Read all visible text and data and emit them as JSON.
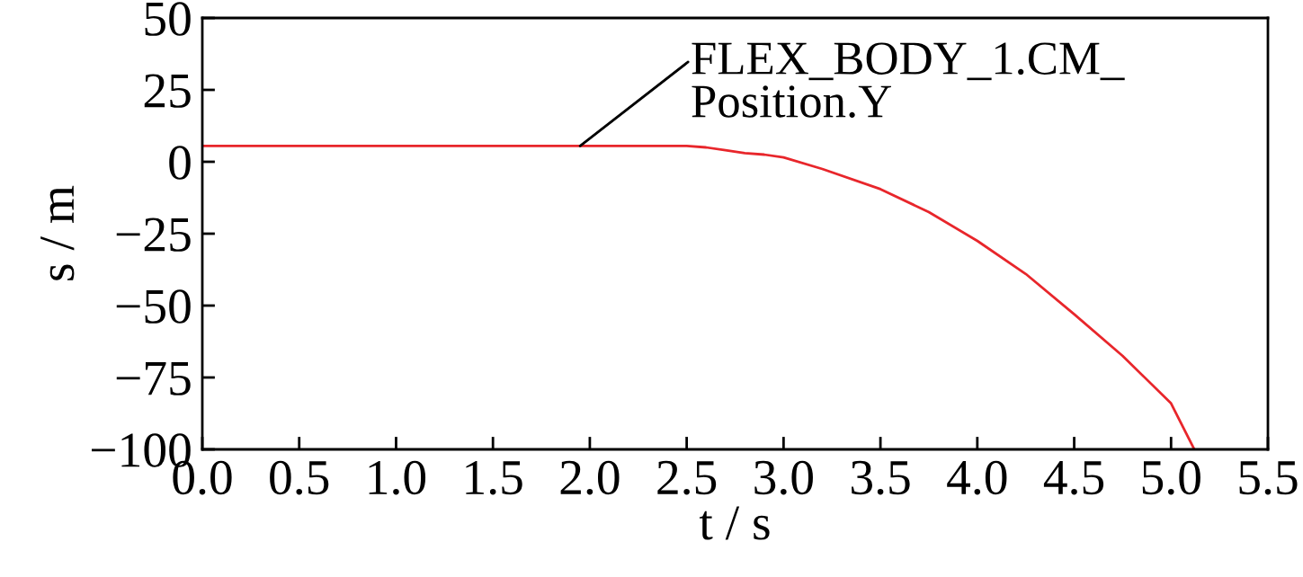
{
  "chart_data": {
    "type": "line",
    "xlabel": "t / s",
    "ylabel": "s / m",
    "x": [
      0,
      0.5,
      1.0,
      1.5,
      2.0,
      2.5,
      2.6,
      2.7,
      2.8,
      2.9,
      3.0,
      3.2,
      3.5,
      3.75,
      4.0,
      4.25,
      4.5,
      4.75,
      5.0,
      5.12
    ],
    "series": [
      {
        "color": "#e8262b",
        "values": [
          5.5,
          5.5,
          5.5,
          5.5,
          5.5,
          5.5,
          5,
          4,
          3,
          2.5,
          1.5,
          -2.5,
          -9.5,
          -17.5,
          -27.5,
          -39,
          -53,
          -67.5,
          -84,
          -100
        ]
      }
    ],
    "xlim": [
      0,
      5.5
    ],
    "ylim": [
      -100,
      50
    ],
    "xticks": [
      {
        "value": 0,
        "label": "0.0"
      },
      {
        "value": 0.5,
        "label": "0.5"
      },
      {
        "value": 1,
        "label": "1.0"
      },
      {
        "value": 1.5,
        "label": "1.5"
      },
      {
        "value": 2,
        "label": "2.0"
      },
      {
        "value": 2.5,
        "label": "2.5"
      },
      {
        "value": 3,
        "label": "3.0"
      },
      {
        "value": 3.5,
        "label": "3.5"
      },
      {
        "value": 4,
        "label": "4.0"
      },
      {
        "value": 4.5,
        "label": "4.5"
      },
      {
        "value": 5,
        "label": "5.0"
      },
      {
        "value": 5.5,
        "label": "5.5"
      }
    ],
    "yticks": [
      50,
      25,
      0,
      {
        "value": -25,
        "label": "−25"
      },
      {
        "value": -50,
        "label": "−50"
      },
      {
        "value": -75,
        "label": "−75"
      },
      {
        "value": -100,
        "label": "−100"
      }
    ],
    "annotations": [
      {
        "text": "FLEX_BODY_1.CM_\nPosition.Y",
        "x": 1.95,
        "y": 5.5
      }
    ],
    "grid": false,
    "legend": false,
    "marker": "none",
    "line_style": "solid"
  }
}
